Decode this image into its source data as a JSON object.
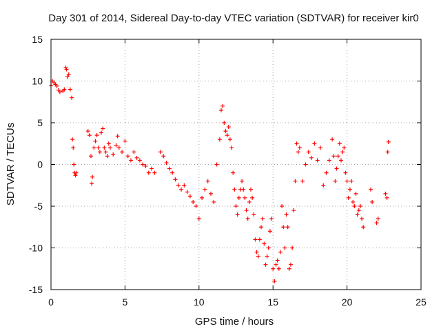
{
  "chart_data": {
    "type": "scatter",
    "title": "Day 301 of 2014, Sidereal Day-to-day VTEC variation (SDTVAR) for receiver kir0",
    "xlabel": "GPS time / hours",
    "ylabel": "SDTVAR / TECUs",
    "xlim": [
      0,
      25
    ],
    "ylim": [
      -15,
      15
    ],
    "xticks": [
      0,
      5,
      10,
      15,
      20,
      25
    ],
    "yticks": [
      -15,
      -10,
      -5,
      0,
      5,
      10,
      15
    ],
    "grid": true,
    "marker": "plus",
    "color": "#ff0000",
    "series": [
      {
        "name": "SDTVAR",
        "x": [
          0.0,
          0.1,
          0.2,
          0.3,
          0.4,
          0.5,
          0.6,
          0.8,
          0.9,
          1.0,
          1.05,
          1.1,
          1.2,
          1.3,
          1.4,
          1.45,
          1.5,
          1.55,
          1.6,
          1.65,
          1.7,
          2.5,
          2.6,
          2.7,
          2.75,
          2.8,
          2.9,
          3.0,
          3.1,
          3.2,
          3.3,
          3.4,
          3.5,
          3.6,
          3.7,
          3.8,
          3.9,
          4.0,
          4.2,
          4.4,
          4.5,
          4.6,
          4.8,
          5.0,
          5.2,
          5.4,
          5.6,
          5.8,
          6.0,
          6.2,
          6.4,
          6.6,
          6.8,
          7.0,
          7.4,
          7.6,
          7.8,
          8.0,
          8.2,
          8.4,
          8.6,
          8.8,
          9.0,
          9.2,
          9.4,
          9.6,
          9.8,
          10.0,
          10.2,
          10.4,
          10.6,
          10.8,
          11.0,
          11.2,
          11.4,
          11.5,
          11.6,
          11.7,
          11.8,
          11.9,
          12.0,
          12.1,
          12.2,
          12.3,
          12.4,
          12.5,
          12.6,
          12.7,
          12.8,
          12.9,
          13.0,
          13.1,
          13.2,
          13.3,
          13.4,
          13.5,
          13.6,
          13.7,
          13.8,
          13.9,
          14.0,
          14.1,
          14.2,
          14.3,
          14.4,
          14.5,
          14.6,
          14.7,
          14.8,
          14.9,
          15.0,
          15.1,
          15.2,
          15.3,
          15.4,
          15.5,
          15.6,
          15.7,
          15.8,
          15.9,
          16.0,
          16.1,
          16.2,
          16.3,
          16.4,
          16.5,
          16.6,
          16.7,
          16.8,
          17.0,
          17.2,
          17.4,
          17.6,
          17.8,
          18.0,
          18.2,
          18.4,
          18.6,
          18.8,
          19.0,
          19.1,
          19.2,
          19.3,
          19.4,
          19.5,
          19.6,
          19.7,
          19.8,
          19.9,
          20.0,
          20.1,
          20.2,
          20.3,
          20.4,
          20.5,
          20.6,
          20.7,
          20.8,
          20.9,
          21.0,
          21.1,
          21.6,
          21.7,
          22.0,
          22.1,
          22.6,
          22.7,
          22.75,
          22.8
        ],
        "y": [
          9.5,
          10.0,
          9.8,
          9.6,
          9.4,
          8.9,
          8.7,
          8.8,
          9.0,
          11.6,
          11.4,
          10.5,
          10.8,
          9.0,
          8.0,
          3.0,
          2.0,
          0.0,
          -1.0,
          -1.3,
          -1.0,
          4.0,
          3.5,
          1.0,
          -2.3,
          -1.5,
          2.0,
          2.8,
          3.5,
          2.0,
          1.5,
          3.8,
          4.3,
          2.0,
          1.5,
          1.0,
          2.5,
          2.0,
          1.2,
          2.3,
          3.4,
          2.0,
          1.5,
          2.8,
          1.0,
          0.5,
          1.5,
          0.8,
          0.5,
          0.0,
          -0.2,
          -1.0,
          -0.5,
          -1.0,
          1.5,
          1.0,
          0.2,
          -0.5,
          -1.0,
          -1.8,
          -2.5,
          -3.0,
          -2.5,
          -3.3,
          -3.8,
          -4.5,
          -5.0,
          -6.5,
          -4.0,
          -3.0,
          -2.0,
          -3.5,
          -4.5,
          0.0,
          3.0,
          6.5,
          7.0,
          5.0,
          4.0,
          3.5,
          4.5,
          3.0,
          2.0,
          -1.0,
          -3.0,
          -5.0,
          -6.0,
          -4.0,
          -3.0,
          -2.0,
          -3.0,
          -4.0,
          -5.5,
          -6.5,
          -4.5,
          -3.0,
          -4.0,
          -6.0,
          -9.0,
          -10.5,
          -11.0,
          -9.0,
          -7.5,
          -6.5,
          -9.5,
          -12.0,
          -11.0,
          -10.0,
          -8.0,
          -6.5,
          -12.5,
          -14.0,
          -12.0,
          -11.5,
          -12.5,
          -10.5,
          -5.0,
          -7.5,
          -10.0,
          -6.0,
          -7.5,
          -12.5,
          -12.0,
          -10.0,
          -5.5,
          -2.0,
          2.5,
          1.5,
          2.0,
          -2.0,
          0.0,
          1.5,
          0.8,
          2.5,
          0.5,
          2.0,
          -2.5,
          -1.0,
          0.5,
          3.0,
          1.0,
          -2.0,
          -0.5,
          1.0,
          2.5,
          0.5,
          1.5,
          2.0,
          -1.0,
          -2.0,
          -4.0,
          -3.0,
          -2.0,
          -4.5,
          -5.0,
          -3.5,
          -6.0,
          -5.5,
          -5.0,
          -6.5,
          -7.5,
          -3.0,
          -4.5,
          -7.0,
          -6.5,
          -3.5,
          -4.0,
          1.5,
          2.7
        ]
      }
    ]
  }
}
